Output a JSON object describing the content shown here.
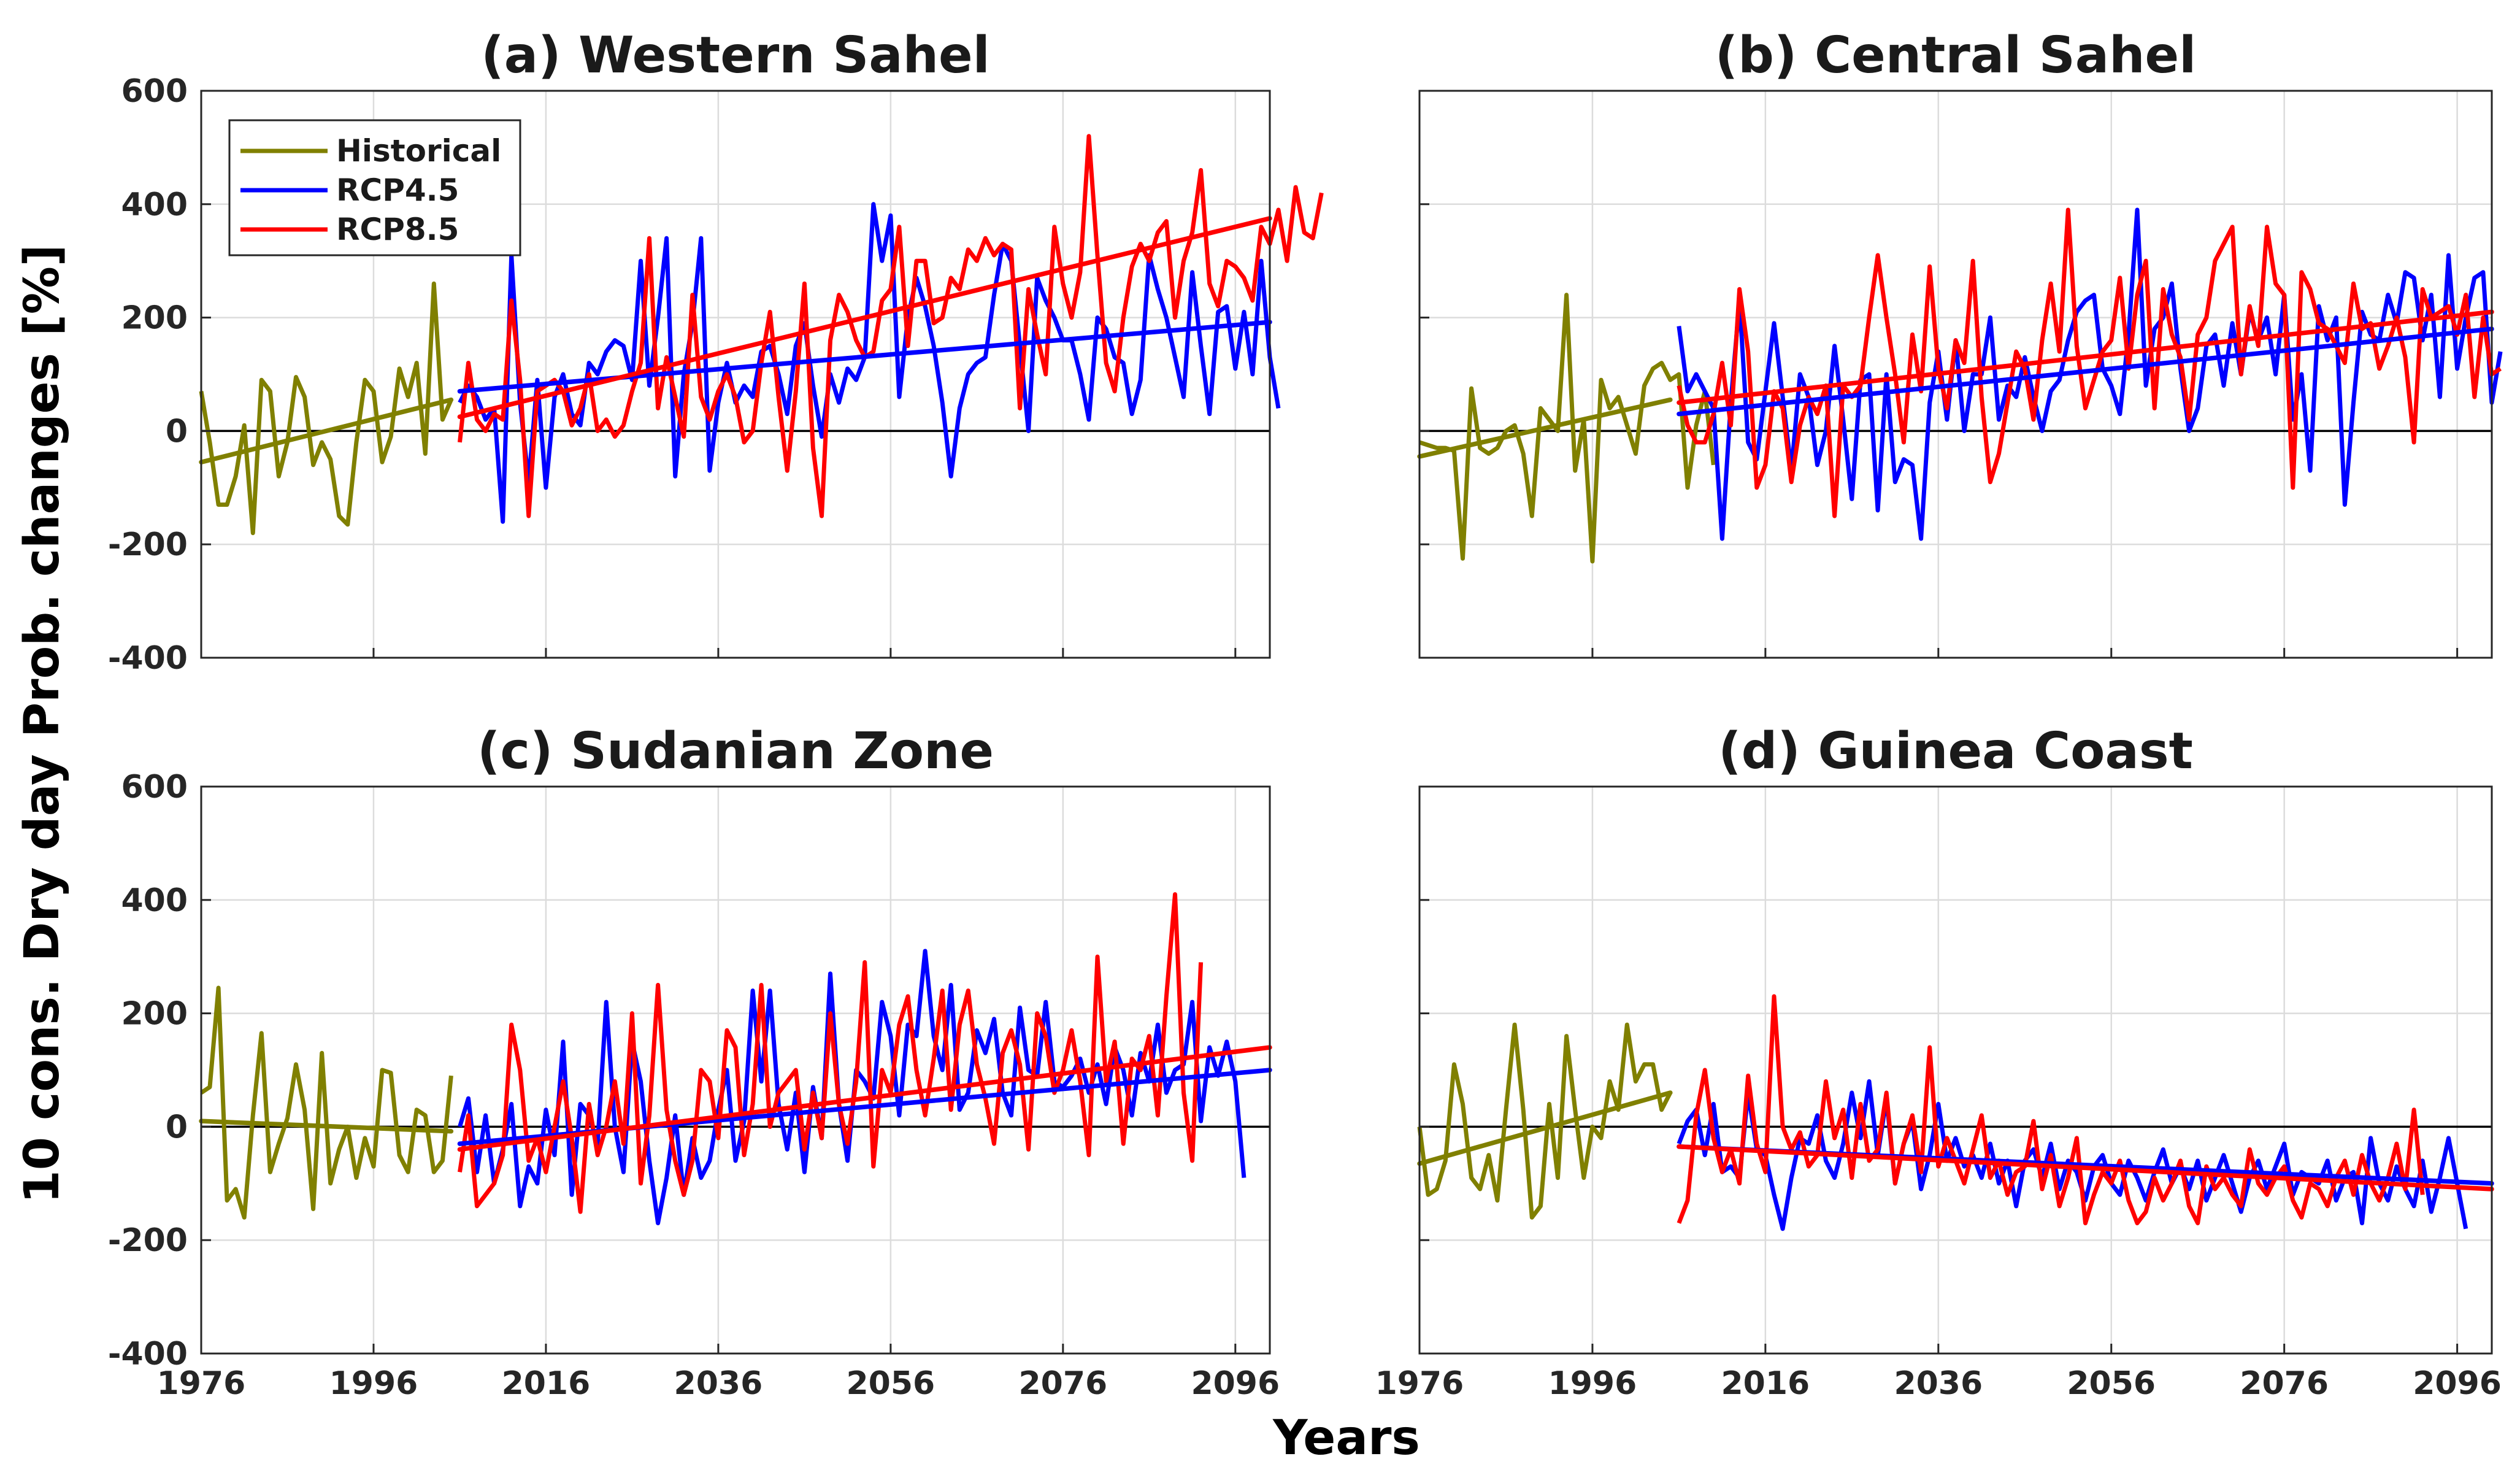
{
  "figure": {
    "ylabel": "10 cons. Dry day Prob. changes [%]",
    "xlabel": "Years"
  },
  "axes": {
    "xlim": [
      1976,
      2100
    ],
    "ylim": [
      -400,
      600
    ],
    "xticks": [
      1976,
      1996,
      2016,
      2036,
      2056,
      2076,
      2096
    ],
    "yticks": [
      -400,
      -200,
      0,
      200,
      400,
      600
    ],
    "grid": true,
    "zero_line": true
  },
  "legend": {
    "location": "top-left",
    "entries": [
      {
        "label": "Historical",
        "color": "#808000"
      },
      {
        "label": "RCP4.5",
        "color": "#0000ff"
      },
      {
        "label": "RCP8.5",
        "color": "#ff0000"
      }
    ]
  },
  "chart_data": [
    {
      "type": "line",
      "title": "(a)  Western Sahel",
      "x_start": {
        "historical": 1976,
        "rcp45": 2006,
        "rcp85": 2006
      },
      "series": [
        {
          "name": "Historical",
          "color": "#808000",
          "trend": [
            [
              1976,
              -55
            ],
            [
              2005,
              55
            ]
          ],
          "values": [
            70,
            -20,
            -130,
            -130,
            -80,
            10,
            -180,
            90,
            70,
            -80,
            -20,
            95,
            60,
            -60,
            -20,
            -50,
            -150,
            -165,
            -20,
            90,
            70,
            -55,
            -10,
            110,
            60,
            120,
            -40,
            260,
            20,
            55
          ]
        },
        {
          "name": "RCP4.5",
          "color": "#0000ff",
          "trend": [
            [
              2006,
              70
            ],
            [
              2100,
              192
            ]
          ],
          "values": [
            50,
            80,
            60,
            20,
            40,
            -160,
            310,
            50,
            -90,
            90,
            -100,
            60,
            100,
            30,
            10,
            120,
            100,
            140,
            160,
            150,
            90,
            300,
            80,
            200,
            340,
            -80,
            100,
            190,
            340,
            -70,
            50,
            120,
            50,
            80,
            60,
            140,
            150,
            100,
            30,
            150,
            190,
            80,
            -10,
            100,
            50,
            110,
            90,
            130,
            400,
            300,
            380,
            60,
            200,
            270,
            220,
            150,
            50,
            -80,
            40,
            100,
            120,
            130,
            240,
            330,
            300,
            150,
            0,
            270,
            230,
            200,
            160,
            160,
            100,
            20,
            200,
            180,
            130,
            120,
            30,
            90,
            310,
            250,
            200,
            130,
            60,
            280,
            150,
            30,
            210,
            220,
            110,
            210,
            100,
            300,
            130,
            40
          ]
        },
        {
          "name": "RCP8.5",
          "color": "#ff0000",
          "trend": [
            [
              2006,
              25
            ],
            [
              2100,
              375
            ]
          ],
          "values": [
            -20,
            120,
            20,
            0,
            30,
            20,
            230,
            90,
            -150,
            70,
            80,
            90,
            70,
            10,
            40,
            100,
            0,
            20,
            -10,
            10,
            70,
            120,
            340,
            40,
            130,
            60,
            -10,
            240,
            60,
            20,
            70,
            100,
            60,
            -20,
            0,
            120,
            210,
            60,
            -70,
            70,
            260,
            -30,
            -150,
            160,
            240,
            210,
            160,
            130,
            140,
            230,
            250,
            360,
            150,
            300,
            300,
            190,
            200,
            270,
            250,
            320,
            300,
            340,
            310,
            330,
            320,
            40,
            250,
            170,
            100,
            360,
            260,
            200,
            280,
            520,
            310,
            120,
            70,
            200,
            290,
            330,
            300,
            350,
            370,
            200,
            300,
            350,
            460,
            260,
            220,
            300,
            290,
            270,
            230,
            360,
            330,
            390,
            300,
            430,
            350,
            340,
            420
          ]
        }
      ]
    },
    {
      "type": "line",
      "title": "(b)  Central Sahel",
      "x_start": {
        "historical": 1976,
        "rcp45": 2006,
        "rcp85": 2006
      },
      "series": [
        {
          "name": "Historical",
          "color": "#808000",
          "trend": [
            [
              1976,
              -45
            ],
            [
              2005,
              55
            ]
          ],
          "values": [
            -20,
            -25,
            -30,
            -30,
            -35,
            -225,
            75,
            -30,
            -40,
            -30,
            0,
            10,
            -40,
            -150,
            40,
            20,
            0,
            240,
            -70,
            20,
            -230,
            90,
            40,
            60,
            10,
            -40,
            80,
            110,
            120,
            90,
            100,
            -100,
            10,
            70,
            -60
          ]
        },
        {
          "name": "RCP4.5",
          "color": "#0000ff",
          "trend": [
            [
              2006,
              30
            ],
            [
              2100,
              180
            ]
          ],
          "values": [
            185,
            70,
            100,
            70,
            40,
            -190,
            50,
            230,
            -20,
            -50,
            70,
            190,
            60,
            -70,
            100,
            60,
            -60,
            0,
            150,
            20,
            -120,
            90,
            100,
            -140,
            100,
            -90,
            -50,
            -60,
            -190,
            50,
            140,
            20,
            160,
            0,
            100,
            100,
            200,
            20,
            80,
            60,
            130,
            60,
            0,
            70,
            90,
            160,
            210,
            230,
            240,
            110,
            80,
            30,
            170,
            390,
            80,
            180,
            200,
            260,
            110,
            0,
            40,
            150,
            170,
            80,
            190,
            100,
            210,
            160,
            200,
            100,
            240,
            20,
            100,
            -70,
            220,
            160,
            200,
            -130,
            50,
            210,
            170,
            160,
            240,
            190,
            280,
            270,
            160,
            240,
            60,
            310,
            110,
            200,
            270,
            280,
            50,
            140
          ]
        },
        {
          "name": "RCP8.5",
          "color": "#ff0000",
          "trend": [
            [
              2006,
              50
            ],
            [
              2100,
              210
            ]
          ],
          "values": [
            80,
            10,
            -20,
            -20,
            30,
            120,
            10,
            250,
            140,
            -100,
            -60,
            70,
            40,
            -90,
            10,
            60,
            30,
            80,
            -150,
            80,
            60,
            80,
            200,
            310,
            200,
            100,
            -20,
            170,
            70,
            290,
            110,
            40,
            160,
            120,
            300,
            60,
            -90,
            -40,
            50,
            140,
            110,
            20,
            160,
            260,
            140,
            390,
            150,
            40,
            90,
            140,
            160,
            270,
            110,
            240,
            300,
            40,
            250,
            170,
            130,
            20,
            170,
            200,
            300,
            330,
            360,
            100,
            220,
            150,
            360,
            260,
            240,
            -100,
            280,
            250,
            190,
            180,
            150,
            120,
            260,
            180,
            190,
            110,
            150,
            200,
            130,
            -20,
            250,
            200,
            210,
            220,
            170,
            240,
            60,
            200,
            100,
            110
          ]
        }
      ]
    },
    {
      "type": "line",
      "title": "(c)  Sudanian Zone",
      "x_start": {
        "historical": 1976,
        "rcp45": 2006,
        "rcp85": 2006
      },
      "series": [
        {
          "name": "Historical",
          "color": "#808000",
          "trend": [
            [
              1976,
              10
            ],
            [
              2005,
              -8
            ]
          ],
          "values": [
            60,
            70,
            245,
            -130,
            -110,
            -160,
            20,
            165,
            -80,
            -30,
            15,
            110,
            30,
            -145,
            130,
            -100,
            -40,
            0,
            -90,
            -20,
            -70,
            100,
            95,
            -50,
            -80,
            30,
            20,
            -80,
            -60,
            90
          ]
        },
        {
          "name": "RCP4.5",
          "color": "#0000ff",
          "trend": [
            [
              2006,
              -30
            ],
            [
              2100,
              100
            ]
          ],
          "values": [
            0,
            50,
            -80,
            20,
            -100,
            -40,
            40,
            -140,
            -70,
            -100,
            30,
            -50,
            150,
            -120,
            40,
            20,
            -30,
            220,
            0,
            -80,
            150,
            80,
            -60,
            -170,
            -90,
            20,
            -120,
            -20,
            -90,
            -60,
            30,
            100,
            -60,
            10,
            240,
            80,
            240,
            40,
            -40,
            60,
            -80,
            70,
            -20,
            270,
            40,
            -60,
            100,
            80,
            50,
            220,
            160,
            20,
            180,
            160,
            310,
            160,
            100,
            250,
            30,
            60,
            170,
            130,
            190,
            60,
            20,
            210,
            100,
            90,
            220,
            80,
            70,
            90,
            120,
            60,
            110,
            40,
            140,
            100,
            20,
            130,
            80,
            180,
            60,
            100,
            110,
            220,
            10,
            140,
            90,
            150,
            80,
            -90
          ]
        },
        {
          "name": "RCP8.5",
          "color": "#ff0000",
          "trend": [
            [
              2006,
              -40
            ],
            [
              2100,
              140
            ]
          ],
          "values": [
            -80,
            20,
            -140,
            -120,
            -100,
            -50,
            180,
            100,
            -60,
            -20,
            -80,
            0,
            80,
            -20,
            -150,
            40,
            -50,
            0,
            80,
            -30,
            200,
            -100,
            20,
            250,
            30,
            -60,
            -120,
            -60,
            100,
            80,
            -20,
            170,
            140,
            -50,
            40,
            250,
            0,
            60,
            80,
            100,
            -40,
            60,
            -20,
            200,
            40,
            -30,
            80,
            290,
            -70,
            100,
            60,
            180,
            230,
            100,
            20,
            120,
            240,
            30,
            180,
            240,
            110,
            50,
            -30,
            130,
            170,
            110,
            -40,
            200,
            160,
            60,
            100,
            170,
            80,
            -50,
            300,
            80,
            150,
            -30,
            120,
            100,
            160,
            20,
            230,
            410,
            60,
            -60,
            290
          ]
        }
      ]
    },
    {
      "type": "line",
      "title": "(d)  Guinea Coast",
      "x_start": {
        "historical": 1976,
        "rcp45": 2006,
        "rcp85": 2006
      },
      "series": [
        {
          "name": "Historical",
          "color": "#808000",
          "trend": [
            [
              1976,
              -65
            ],
            [
              2005,
              60
            ]
          ],
          "values": [
            0,
            -120,
            -110,
            -60,
            110,
            40,
            -90,
            -110,
            -50,
            -130,
            30,
            180,
            30,
            -160,
            -140,
            40,
            -90,
            160,
            30,
            -90,
            0,
            -20,
            80,
            30,
            180,
            80,
            110,
            110,
            30,
            60
          ]
        },
        {
          "name": "RCP4.5",
          "color": "#0000ff",
          "trend": [
            [
              2006,
              -35
            ],
            [
              2100,
              -100
            ]
          ],
          "values": [
            -30,
            10,
            30,
            -50,
            40,
            -80,
            -70,
            -90,
            60,
            -40,
            -50,
            -120,
            -180,
            -90,
            -20,
            -30,
            20,
            -60,
            -90,
            -30,
            60,
            -20,
            80,
            -50,
            50,
            -100,
            -30,
            10,
            -110,
            -50,
            40,
            -60,
            -20,
            -70,
            -50,
            -90,
            -30,
            -100,
            -60,
            -140,
            -60,
            -40,
            -90,
            -30,
            -110,
            -60,
            -80,
            -130,
            -70,
            -50,
            -100,
            -120,
            -60,
            -90,
            -130,
            -80,
            -40,
            -100,
            -70,
            -110,
            -60,
            -130,
            -90,
            -50,
            -100,
            -150,
            -90,
            -60,
            -110,
            -70,
            -30,
            -120,
            -80,
            -90,
            -100,
            -60,
            -130,
            -90,
            -80,
            -170,
            -20,
            -100,
            -130,
            -70,
            -110,
            -140,
            -60,
            -150,
            -90,
            -20,
            -100,
            -180
          ]
        },
        {
          "name": "RCP8.5",
          "color": "#ff0000",
          "trend": [
            [
              2006,
              -35
            ],
            [
              2100,
              -110
            ]
          ],
          "values": [
            -170,
            -130,
            20,
            100,
            -20,
            -80,
            -40,
            -100,
            90,
            -30,
            -80,
            230,
            0,
            -40,
            -10,
            -70,
            -50,
            80,
            -20,
            30,
            -90,
            40,
            -60,
            -40,
            60,
            -100,
            -30,
            20,
            -80,
            140,
            -70,
            -20,
            -60,
            -100,
            -40,
            20,
            -90,
            -60,
            -120,
            -80,
            -70,
            10,
            -110,
            -50,
            -140,
            -90,
            -20,
            -170,
            -120,
            -80,
            -100,
            -60,
            -130,
            -170,
            -150,
            -90,
            -130,
            -100,
            -60,
            -140,
            -170,
            -70,
            -110,
            -90,
            -120,
            -140,
            -40,
            -100,
            -120,
            -90,
            -70,
            -130,
            -160,
            -100,
            -110,
            -140,
            -90,
            -60,
            -120,
            -50,
            -100,
            -130,
            -90,
            -30,
            -110,
            30,
            -120
          ]
        }
      ]
    }
  ]
}
